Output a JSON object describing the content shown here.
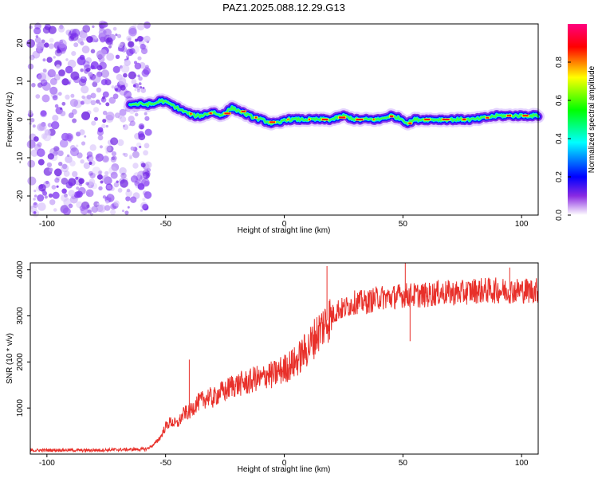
{
  "title": "PAZ1.2025.088.12.29.G13",
  "chart_data": [
    {
      "type": "heatmap",
      "xlabel": "Height of straight line (km)",
      "ylabel": "Frequency (Hz)",
      "xlim": [
        -107,
        107
      ],
      "ylim": [
        -25,
        25
      ],
      "xticks": [
        -100,
        -50,
        0,
        50,
        100
      ],
      "yticks": [
        -20,
        -10,
        0,
        10,
        20
      ],
      "colorbar": {
        "label": "Normalized spectral amplitude",
        "range": [
          0,
          1
        ],
        "ticks": [
          0.0,
          0.2,
          0.4,
          0.6,
          0.8
        ],
        "colormap": [
          "#ffffff",
          "#8a2be2",
          "#0000ff",
          "#00ffff",
          "#00ff00",
          "#ffff00",
          "#ff0000",
          "#ff0080"
        ]
      },
      "noise_region_x": [
        -107,
        -57
      ],
      "trace": {
        "x": [
          -65,
          -60,
          -55,
          -52,
          -48,
          -45,
          -42,
          -38,
          -35,
          -30,
          -27,
          -22,
          -18,
          -15,
          -10,
          -5,
          -2,
          0,
          5,
          10,
          15,
          20,
          25,
          30,
          35,
          40,
          45,
          50,
          52,
          55,
          60,
          70,
          80,
          90,
          100,
          107
        ],
        "y": [
          4,
          4,
          4,
          5,
          4,
          3,
          2,
          1,
          1,
          2,
          1,
          3,
          2,
          1,
          0,
          -1,
          -1,
          0,
          0,
          0,
          0,
          0,
          1,
          0,
          0,
          0,
          1,
          0,
          -1,
          0,
          0,
          0,
          0,
          1,
          1,
          1
        ]
      }
    },
    {
      "type": "line",
      "xlabel": "Height of straight line (km)",
      "ylabel": "SNR (10 * v/v)",
      "xlim": [
        -107,
        107
      ],
      "ylim": [
        0,
        4150
      ],
      "xticks": [
        -100,
        -50,
        0,
        50,
        100
      ],
      "yticks": [
        1000,
        2000,
        3000,
        4000
      ],
      "color": "#e8302a",
      "series": [
        {
          "x": [
            -107,
            -95,
            -85,
            -75,
            -65,
            -58,
            -55,
            -52,
            -50,
            -48,
            -45,
            -42,
            -40,
            -37,
            -35,
            -32,
            -30,
            -27,
            -25,
            -22,
            -20,
            -17,
            -15,
            -12,
            -10,
            -7,
            -5,
            -2,
            0,
            3,
            5,
            8,
            10,
            13,
            15,
            18,
            20,
            23,
            25,
            28,
            30,
            35,
            40,
            45,
            50,
            55,
            60,
            65,
            70,
            75,
            80,
            85,
            90,
            95,
            100,
            107
          ],
          "y": [
            80,
            90,
            80,
            90,
            100,
            110,
            200,
            380,
            600,
            700,
            650,
            900,
            900,
            1100,
            1150,
            1250,
            1200,
            1350,
            1350,
            1500,
            1500,
            1550,
            1550,
            1650,
            1600,
            1750,
            1700,
            1800,
            1850,
            1950,
            2000,
            2200,
            2300,
            2550,
            2700,
            2900,
            3000,
            3150,
            3150,
            3250,
            3300,
            3300,
            3400,
            3400,
            3450,
            3450,
            3450,
            3500,
            3500,
            3500,
            3550,
            3550,
            3550,
            3550,
            3550,
            3550
          ]
        }
      ],
      "spikes": [
        {
          "x": -40,
          "y": 2050
        },
        {
          "x": 18,
          "y": 4080
        },
        {
          "x": 51,
          "y": 4150
        },
        {
          "x": 53,
          "y": 2450
        },
        {
          "x": 95,
          "y": 4050
        }
      ]
    }
  ]
}
